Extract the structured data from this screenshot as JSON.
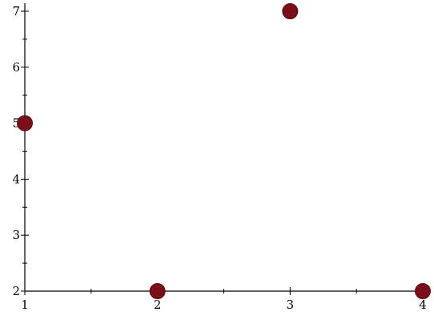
{
  "chart_data": {
    "type": "scatter",
    "title": "",
    "xlabel": "",
    "ylabel": "",
    "x": [
      1,
      2,
      3,
      4
    ],
    "y": [
      5,
      2,
      7,
      2
    ],
    "xlim": [
      1,
      4
    ],
    "ylim": [
      2,
      7
    ],
    "x_ticks": [
      1,
      2,
      3,
      4
    ],
    "y_ticks": [
      2,
      3,
      4,
      5,
      6,
      7
    ],
    "grid": false,
    "legend": "none",
    "marker_color": "#7a0f1a",
    "axis_color": "#000000"
  }
}
